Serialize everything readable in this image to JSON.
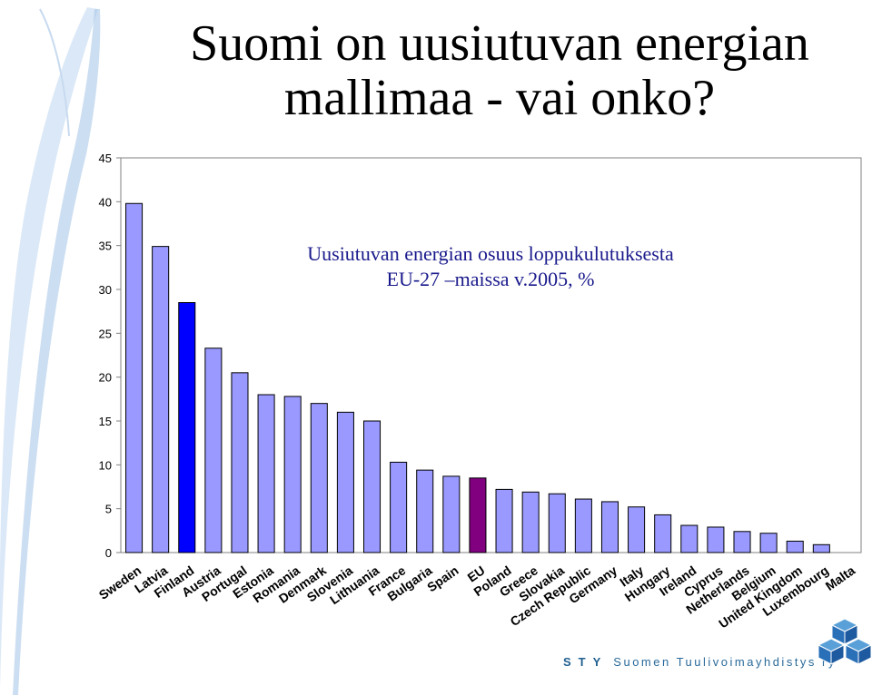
{
  "title": "Suomi on uusiutuvan energian mallimaa - vai onko?",
  "footer": {
    "abbr": "STY",
    "name": "Suomen Tuulivoimayhdistys ry"
  },
  "logo_icon": "cube-cluster-logo-icon",
  "chart_data": {
    "type": "bar",
    "subtitle_lines": [
      "Uusiutuvan energian osuus loppukulutuksesta",
      "EU-27 –maissa v.2005, %"
    ],
    "categories": [
      "Sweden",
      "Latvia",
      "Finland",
      "Austria",
      "Portugal",
      "Estonia",
      "Romania",
      "Denmark",
      "Slovenia",
      "Lithuania",
      "France",
      "Bulgaria",
      "Spain",
      "EU",
      "Poland",
      "Greece",
      "Slovakia",
      "Czech Republic",
      "Germany",
      "Italy",
      "Hungary",
      "Ireland",
      "Cyprus",
      "Netherlands",
      "Belgium",
      "United Kingdom",
      "Luxembourg",
      "Malta"
    ],
    "values": [
      39.8,
      34.9,
      28.5,
      23.3,
      20.5,
      18.0,
      17.8,
      17.0,
      16.0,
      15.0,
      10.3,
      9.4,
      8.7,
      8.5,
      7.2,
      6.9,
      6.7,
      6.1,
      5.8,
      5.2,
      4.3,
      3.1,
      2.9,
      2.4,
      2.2,
      1.3,
      0.9,
      0.0
    ],
    "highlight": {
      "Finland": "#0000ff",
      "EU": "#800080"
    },
    "bar_color": "#9999ff",
    "ylim": [
      0,
      45
    ],
    "yticks": [
      0,
      5,
      10,
      15,
      20,
      25,
      30,
      35,
      40,
      45
    ],
    "grid": false,
    "legend": "none"
  }
}
